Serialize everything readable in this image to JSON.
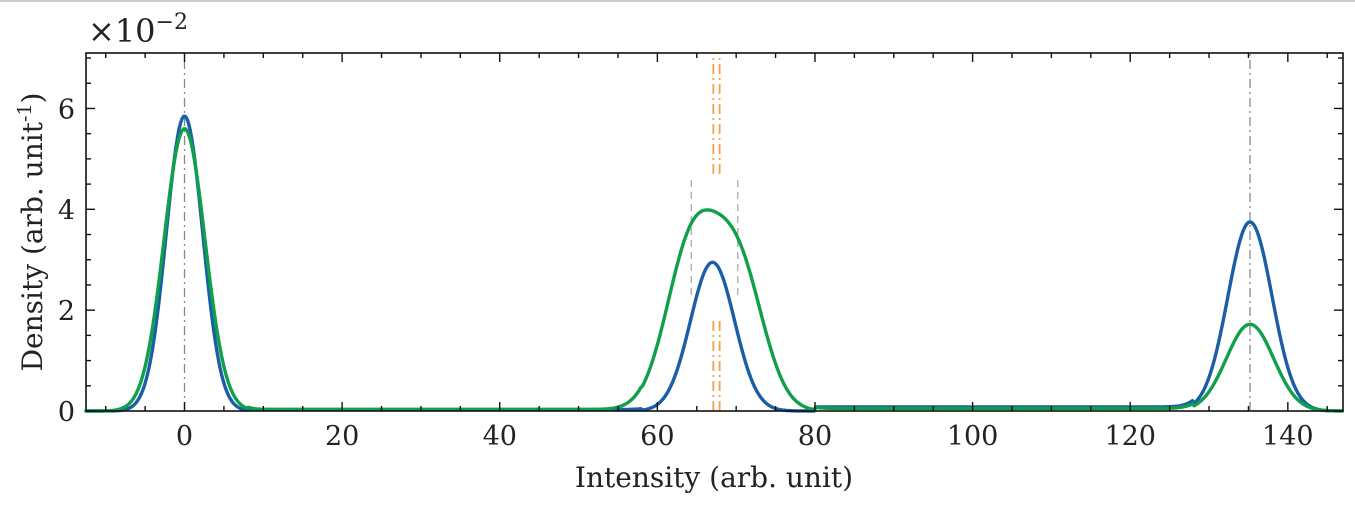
{
  "chart_data": {
    "type": "line",
    "title": "",
    "xlabel": "Intensity (arb. unit)",
    "ylabel_main": "Density (arb. unit",
    "ylabel_sup": "-1",
    "ylabel_close": ")",
    "offset_text_base": "×10",
    "offset_text_exp": "−2",
    "xlim": [
      -12.5,
      147
    ],
    "ylim": [
      0,
      7.1
    ],
    "xticks": [
      0,
      20,
      40,
      60,
      80,
      100,
      120,
      140
    ],
    "xtick_labels": [
      "0",
      "20",
      "40",
      "60",
      "80",
      "100",
      "120",
      "140"
    ],
    "yticks": [
      0,
      2,
      4,
      6
    ],
    "ytick_labels": [
      "0",
      "2",
      "4",
      "6"
    ],
    "grid": false,
    "series": [
      {
        "color": "#1a5ea8",
        "components": [
          {
            "center": 0,
            "amplitude": 5.85,
            "sigma": 2.3
          },
          {
            "center": 67,
            "amplitude": 2.95,
            "sigma": 2.8
          },
          {
            "center": 135.2,
            "amplitude": 3.75,
            "sigma": 2.8
          }
        ],
        "baseline": [
          {
            "x_start": 8,
            "x_end": 58,
            "y": 0.03
          },
          {
            "x_start": 80,
            "x_end": 128,
            "y": 0.08
          }
        ]
      },
      {
        "color": "#10a04a",
        "components": [
          {
            "center": 0,
            "amplitude": 5.6,
            "sigma": 2.6
          },
          {
            "center": 64.3,
            "amplitude": 3.2,
            "sigma": 3.2
          },
          {
            "center": 70.2,
            "amplitude": 2.85,
            "sigma": 3.2
          },
          {
            "center": 135.2,
            "amplitude": 1.72,
            "sigma": 3.0
          }
        ],
        "baseline": [
          {
            "x_start": 8,
            "x_end": 58,
            "y": 0.03
          },
          {
            "x_start": 80,
            "x_end": 128,
            "y": 0.05
          }
        ]
      }
    ],
    "reference_lines": [
      {
        "x": 0,
        "y0": 0,
        "y1": 7.1,
        "style": "gray-dashdot"
      },
      {
        "x": 135.2,
        "y0": 0,
        "y1": 7.1,
        "style": "gray-dashdot"
      },
      {
        "x": 64.3,
        "y0": 2.3,
        "y1": 4.65,
        "style": "light-dash"
      },
      {
        "x": 70.2,
        "y0": 2.3,
        "y1": 4.65,
        "style": "light-dash"
      },
      {
        "x": 67.1,
        "y0": 0,
        "y1": 1.8,
        "style": "orange-dashdot"
      },
      {
        "x": 67.9,
        "y0": 0,
        "y1": 1.8,
        "style": "orange-dashdot"
      },
      {
        "x": 67.1,
        "y0": 4.7,
        "y1": 7.1,
        "style": "orange-dashdot"
      },
      {
        "x": 67.9,
        "y0": 4.7,
        "y1": 7.1,
        "style": "orange-dashdot"
      }
    ]
  }
}
